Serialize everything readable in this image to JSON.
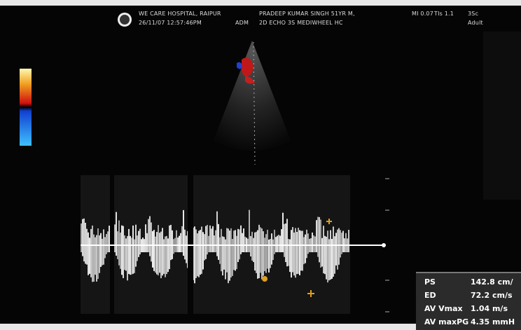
{
  "header": {
    "hospital": "WE CARE HOSPITAL, RAIPUR",
    "datetime": "26/11/07 12:57:46PM",
    "operator": "ADM",
    "patient": "PRADEEP KUMAR SINGH 51YR M,",
    "study": "2D ECHO 3S MEDIWHEEL HC",
    "mi": "MI 0.07",
    "tis": "TIs 1.1",
    "probe": "3Sc",
    "preset": "Adult"
  },
  "measurements": [
    {
      "label": "PS",
      "value": "142.8 cm/"
    },
    {
      "label": "ED",
      "value": "72.2 cm/s"
    },
    {
      "label": "AV Vmax",
      "value": "1.04 m/s"
    },
    {
      "label": "AV maxPG",
      "value": "4.35 mmH"
    }
  ]
}
